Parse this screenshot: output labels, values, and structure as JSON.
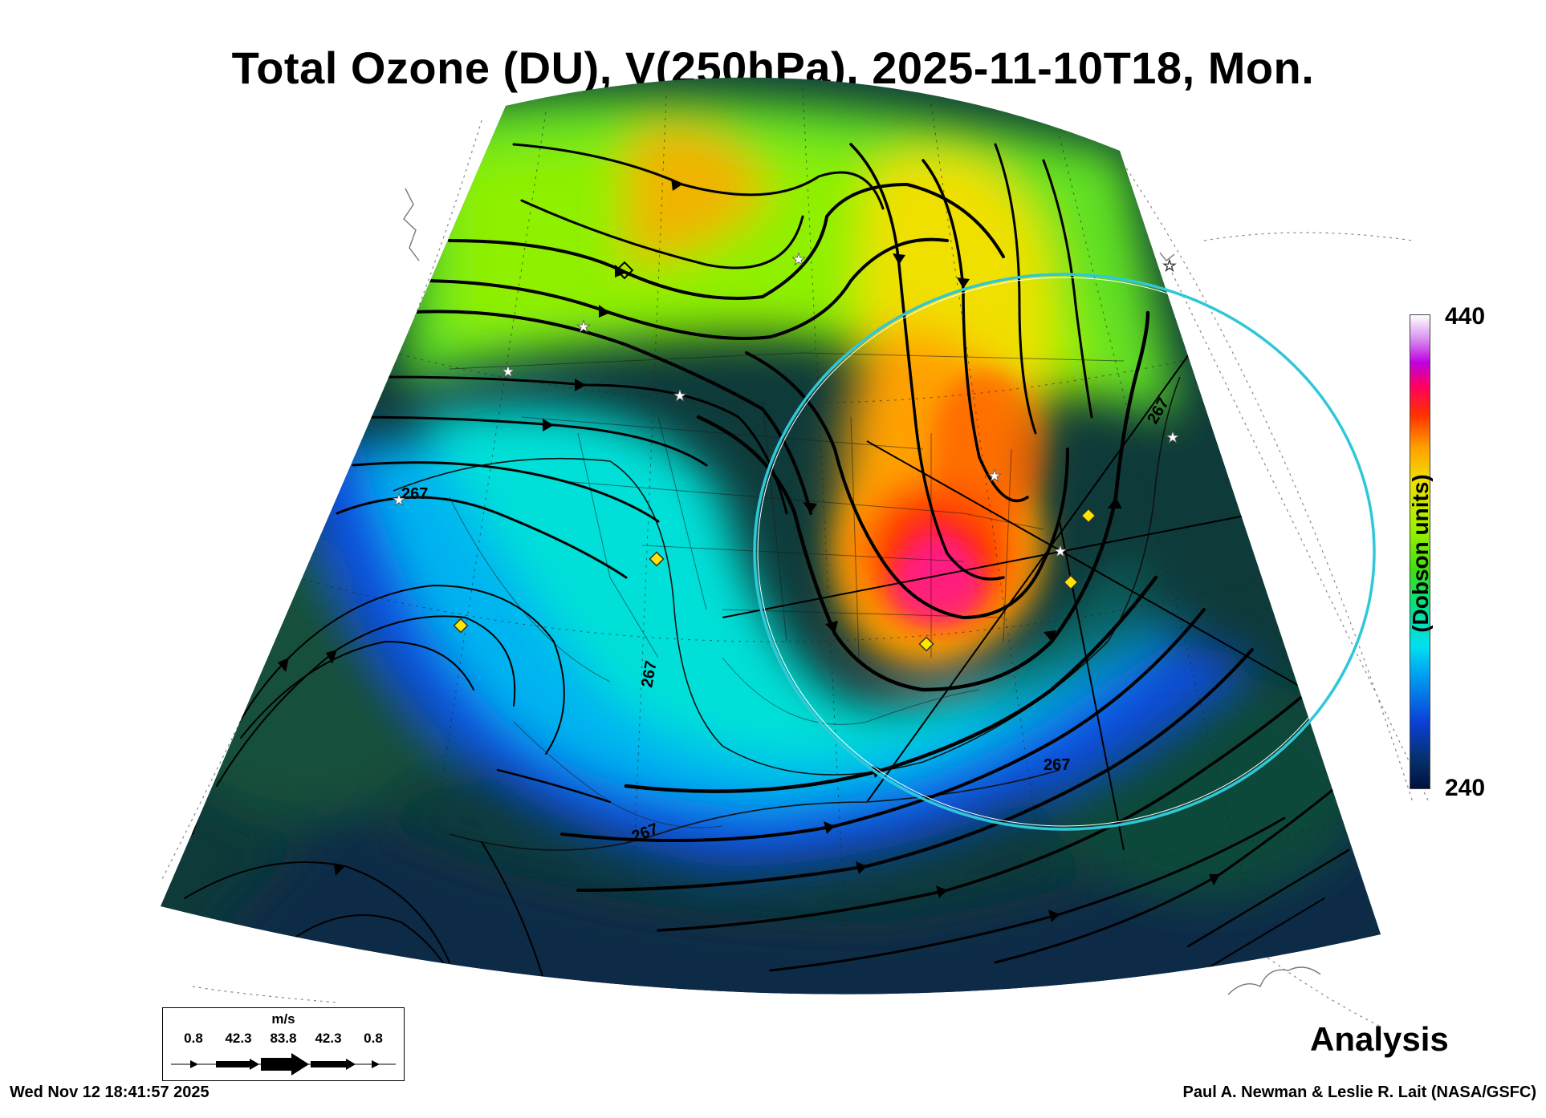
{
  "title": "Total Ozone (DU), V(250hPa), 2025-11-10T18, Mon.",
  "colorbar": {
    "max_label": "440",
    "min_label": "240",
    "units_label": "(Dobson units)"
  },
  "contour_labels": [
    "267",
    "267",
    "267",
    "267",
    "267"
  ],
  "wind_key": {
    "unit": "m/s",
    "speeds": [
      "0.8",
      "42.3",
      "83.8",
      "42.3",
      "0.8"
    ]
  },
  "product_label": "Analysis",
  "footer": {
    "timestamp": "Wed Nov 12 18:41:57 2025",
    "credit": "Paul A. Newman & Leslie R. Lait (NASA/GSFC)"
  },
  "colors": {
    "low_ozone": "#0a2a3a",
    "mid_ozone": "#00d0f0",
    "high_ozone": "#ff2000",
    "ring": "#2ec8d8",
    "streamline": "#000000",
    "diamond": "#ffe600"
  }
}
